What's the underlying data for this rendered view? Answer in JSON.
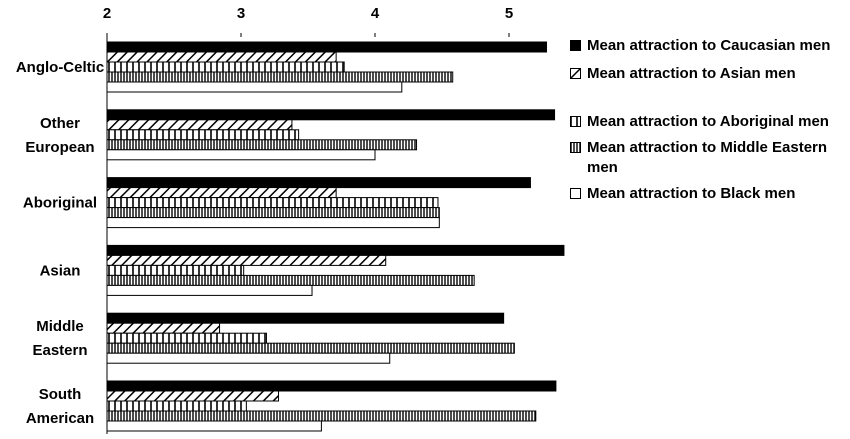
{
  "chart_data": {
    "type": "bar",
    "orientation": "horizontal",
    "categories": [
      [
        "Anglo-Celtic"
      ],
      [
        "Other",
        "European"
      ],
      [
        "Aboriginal"
      ],
      [
        "Asian"
      ],
      [
        "Middle",
        "Eastern"
      ],
      [
        "South",
        "American"
      ]
    ],
    "series": [
      {
        "name": "Mean attraction to Caucasian men",
        "values": [
          5.28,
          5.34,
          5.16,
          5.41,
          4.96,
          5.35
        ],
        "pattern": "solid"
      },
      {
        "name": "Mean attraction to Asian men",
        "values": [
          3.71,
          3.38,
          3.71,
          4.08,
          2.84,
          3.28
        ],
        "pattern": "diagonal"
      },
      {
        "name": "Mean attraction to Aboriginal men",
        "values": [
          3.77,
          3.43,
          4.47,
          3.02,
          3.19,
          3.04
        ],
        "pattern": "vertical-open"
      },
      {
        "name": "Mean attraction to Middle Eastern men",
        "values": [
          4.58,
          4.31,
          4.48,
          4.74,
          5.04,
          5.2
        ],
        "pattern": "vertical-dense"
      },
      {
        "name": "Mean attraction to Black men",
        "values": [
          4.2,
          4.0,
          4.48,
          3.53,
          4.11,
          3.6
        ],
        "pattern": "empty"
      }
    ],
    "xticks": [
      "2",
      "3",
      "4",
      "5"
    ],
    "xlim": [
      2,
      5.5
    ],
    "title": "",
    "xlabel": "",
    "ylabel": "",
    "legend_position": "right",
    "grid": false
  }
}
